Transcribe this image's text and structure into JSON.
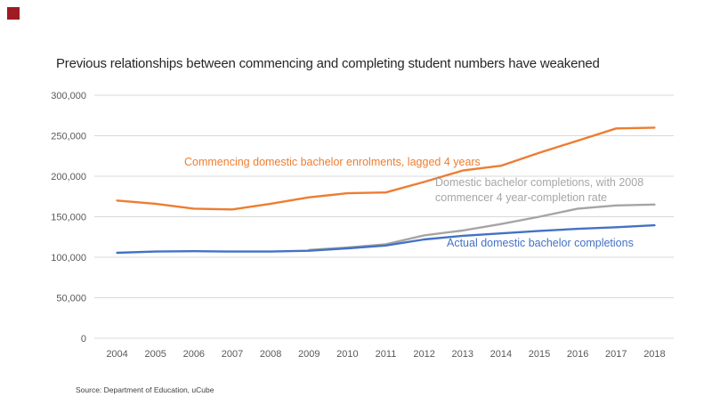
{
  "page": {
    "title": "Previous relationships between commencing and completing student numbers have weakened",
    "source": "Source: Department of Education, uCube",
    "logo_color": "#9E1B24",
    "background": "#FFFFFF"
  },
  "chart_data": {
    "type": "line",
    "title": "Previous relationships between commencing and completing student numbers have weakened",
    "xlabel": "",
    "ylabel": "",
    "x": [
      2004,
      2005,
      2006,
      2007,
      2008,
      2009,
      2010,
      2011,
      2012,
      2013,
      2014,
      2015,
      2016,
      2017,
      2018
    ],
    "series": [
      {
        "name": "Commencing domestic bachelor enrolments, lagged 4 years",
        "color": "#ED7D31",
        "values": [
          170000,
          166000,
          160000,
          159000,
          166000,
          174000,
          179000,
          180000,
          193000,
          207000,
          213000,
          229000,
          244000,
          259000,
          260000
        ]
      },
      {
        "name": "Domestic bachelor completions, with 2008 commencer 4 year-completion rate",
        "color": "#A5A5A5",
        "values": [
          null,
          null,
          null,
          null,
          null,
          109000,
          112000,
          116000,
          127000,
          133000,
          141000,
          150000,
          160000,
          164000,
          165000
        ]
      },
      {
        "name": "Actual domestic bachelor completions",
        "color": "#4472C4",
        "values": [
          105500,
          107000,
          107500,
          107000,
          107000,
          108000,
          111000,
          114500,
          122000,
          126500,
          129500,
          132500,
          135000,
          137000,
          139500
        ]
      }
    ],
    "ylim": [
      0,
      300000
    ],
    "y_tick_step": 50000,
    "y_tick_labels": [
      "0",
      "50,000",
      "100,000",
      "150,000",
      "200,000",
      "250,000",
      "300,000"
    ],
    "grid": true,
    "legend": "inline-annotations",
    "gridline_color": "#D9D9D9",
    "axis_color": "#595959",
    "annotations": [
      {
        "text": "Commencing domestic bachelor enrolments, lagged 4 years",
        "color": "#ED7D31"
      },
      {
        "text": "Domestic bachelor completions, with 2008\ncommencer 4 year-completion rate",
        "color": "#A6A6A6"
      },
      {
        "text": "Actual domestic bachelor completions",
        "color": "#4472C4"
      }
    ]
  }
}
